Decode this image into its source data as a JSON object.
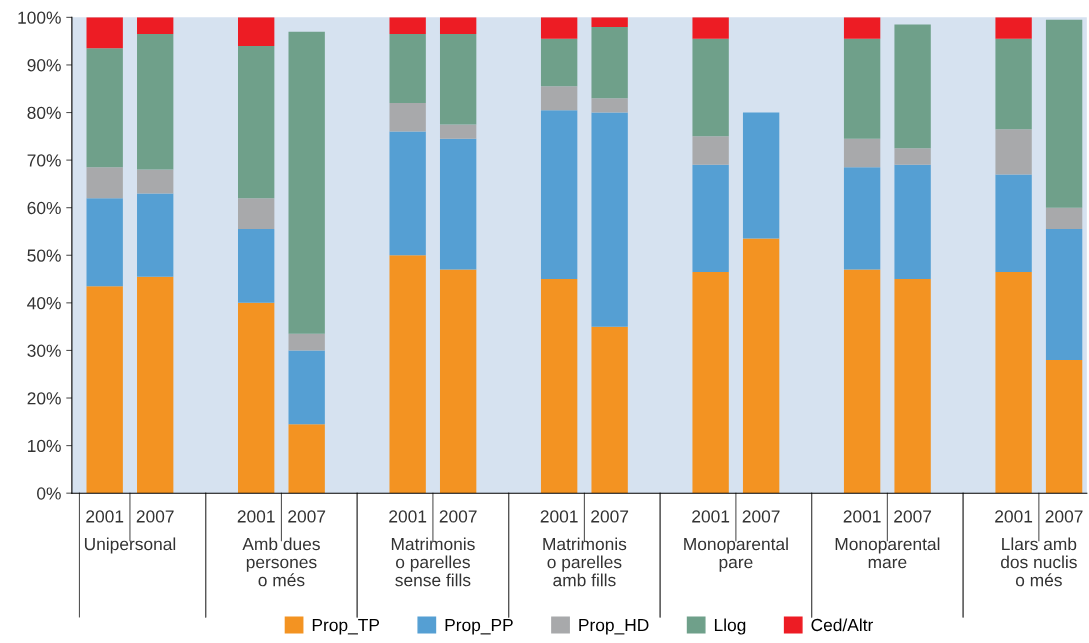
{
  "chart_data": {
    "type": "bar",
    "stacked": true,
    "categories": [
      "2001",
      "2007",
      null,
      "2001",
      "2007",
      null,
      "2001",
      "2007",
      null,
      "2001",
      "2007",
      null,
      "2001",
      "2007",
      null,
      "2001",
      "2007",
      null,
      "2001",
      "2007"
    ],
    "series": [
      {
        "name": "Prop_TP",
        "color": "#f39322",
        "values": [
          43.5,
          45.5,
          null,
          40,
          14.5,
          null,
          50,
          47,
          null,
          45,
          35,
          null,
          46.5,
          53.5,
          null,
          47,
          45,
          null,
          46.5,
          28
        ]
      },
      {
        "name": "Prop_PP",
        "color": "#559fd3",
        "values": [
          18.5,
          17.5,
          null,
          15.5,
          15.5,
          null,
          26,
          27.5,
          null,
          35.5,
          45,
          null,
          22.5,
          26.5,
          null,
          21.5,
          24,
          null,
          20.5,
          27.5
        ]
      },
      {
        "name": "Prop_HD",
        "color": "#a8a9ab",
        "values": [
          6.5,
          5,
          null,
          6.5,
          3.5,
          null,
          6,
          3,
          null,
          5,
          3,
          null,
          6,
          0,
          null,
          6,
          3.5,
          null,
          9.5,
          4.5
        ]
      },
      {
        "name": "Llog",
        "color": "#6fa08a",
        "values": [
          25,
          28.5,
          null,
          32,
          63.5,
          null,
          14.5,
          19,
          null,
          10,
          15,
          null,
          20.5,
          0,
          null,
          21,
          26,
          null,
          19,
          39.5
        ]
      },
      {
        "name": "Ced/Altr",
        "color": "#ed1c24",
        "values": [
          6.5,
          3.5,
          null,
          6,
          0,
          null,
          3.5,
          3.5,
          null,
          4.5,
          2,
          null,
          4.5,
          0,
          null,
          4.5,
          0,
          null,
          4.5,
          0
        ]
      }
    ],
    "ylim": [
      0,
      100
    ],
    "yticks": [
      {
        "value": 0,
        "label": "0%"
      },
      {
        "value": 10,
        "label": "10%"
      },
      {
        "value": 20,
        "label": "20%"
      },
      {
        "value": 30,
        "label": "30%"
      },
      {
        "value": 40,
        "label": "40%"
      },
      {
        "value": 50,
        "label": "50%"
      },
      {
        "value": 60,
        "label": "60%"
      },
      {
        "value": 70,
        "label": "70%"
      },
      {
        "value": 80,
        "label": "80%"
      },
      {
        "value": 90,
        "label": "90%"
      },
      {
        "value": 100,
        "label": "100%"
      }
    ],
    "annotations": [
      "Unipersonal",
      "Amb dues\npersones\no més",
      "Matrimonis\no parelles\nsense fills",
      "Matrimonis\no parelles\namb fills",
      "Monoparental\npare",
      "Monoparental\nmare",
      "Llars amb\ndos nuclis\no més"
    ],
    "legend": "bottom",
    "grid": false
  }
}
